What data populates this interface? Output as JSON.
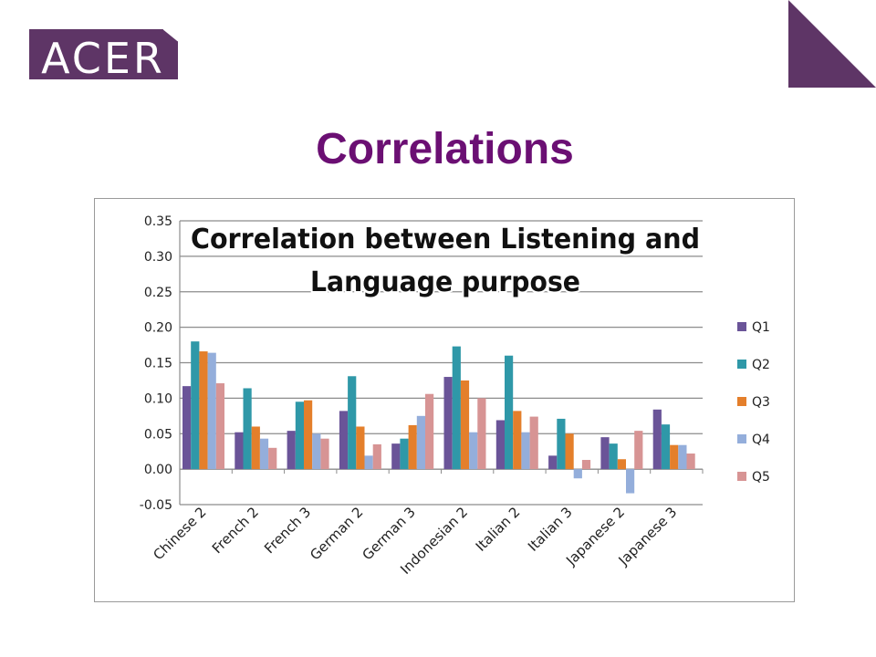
{
  "logo": {
    "text": "ACER"
  },
  "slide": {
    "title": "Correlations"
  },
  "colors": {
    "brand": "#5e3566",
    "title": "#6b0f73",
    "series": [
      "#6a5498",
      "#2f98a8",
      "#e47f2b",
      "#94aedb",
      "#d79494"
    ]
  },
  "chart_data": {
    "type": "bar",
    "title_lines": [
      "Correlation between Listening and",
      "Language purpose"
    ],
    "categories": [
      "Chinese 2",
      "French 2",
      "French 3",
      "German 2",
      "German 3",
      "Indonesian 2",
      "Italian 2",
      "Italian 3",
      "Japanese 2",
      "Japanese 3"
    ],
    "series": [
      {
        "name": "Q1",
        "values": [
          0.117,
          0.052,
          0.054,
          0.082,
          0.036,
          0.13,
          0.069,
          0.019,
          0.045,
          0.084
        ]
      },
      {
        "name": "Q2",
        "values": [
          0.18,
          0.114,
          0.095,
          0.131,
          0.043,
          0.173,
          0.16,
          0.071,
          0.036,
          0.063
        ]
      },
      {
        "name": "Q3",
        "values": [
          0.166,
          0.06,
          0.097,
          0.06,
          0.062,
          0.125,
          0.082,
          0.05,
          0.014,
          0.034
        ]
      },
      {
        "name": "Q4",
        "values": [
          0.164,
          0.043,
          0.05,
          0.019,
          0.075,
          0.052,
          0.052,
          -0.013,
          -0.034,
          0.034
        ]
      },
      {
        "name": "Q5",
        "values": [
          0.121,
          0.03,
          0.043,
          0.035,
          0.106,
          0.1,
          0.074,
          0.013,
          0.054,
          0.022
        ]
      }
    ],
    "ylim": [
      -0.05,
      0.35
    ],
    "yticks": [
      "0.35",
      "0.30",
      "0.25",
      "0.20",
      "0.15",
      "0.10",
      "0.05",
      "0.00",
      "-0.05"
    ],
    "ytick_values": [
      0.35,
      0.3,
      0.25,
      0.2,
      0.15,
      0.1,
      0.05,
      0.0,
      -0.05
    ],
    "grid": true,
    "legend": "right"
  }
}
